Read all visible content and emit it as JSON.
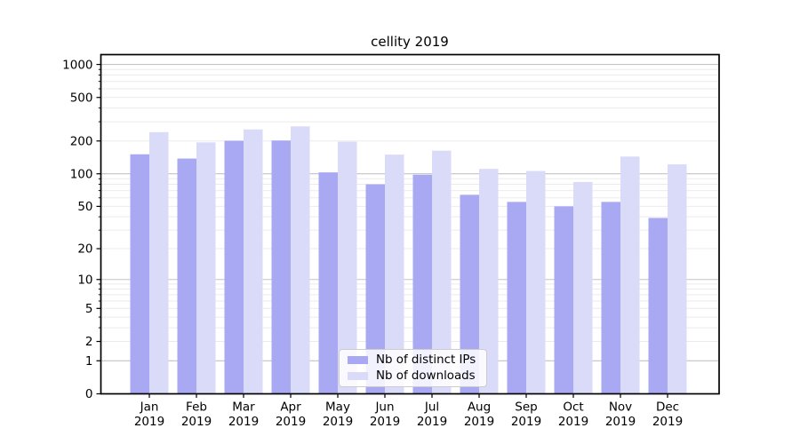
{
  "chart_data": {
    "type": "bar",
    "title": "cellity 2019",
    "categories": [
      "Jan 2019",
      "Feb 2019",
      "Mar 2019",
      "Apr 2019",
      "May 2019",
      "Jun 2019",
      "Jul 2019",
      "Aug 2019",
      "Sep 2019",
      "Oct 2019",
      "Nov 2019",
      "Dec 2019"
    ],
    "series": [
      {
        "name": "Nb of distinct IPs",
        "color": "#a8a8f3",
        "values": [
          151,
          138,
          201,
          202,
          103,
          80,
          98,
          64,
          55,
          50,
          55,
          39
        ]
      },
      {
        "name": "Nb of downloads",
        "color": "#dadaf9",
        "values": [
          241,
          194,
          255,
          272,
          197,
          150,
          163,
          111,
          106,
          84,
          144,
          122
        ]
      }
    ],
    "xlabel": "",
    "ylabel": "",
    "y_axis": {
      "scale": "log1p",
      "ticks": [
        1000,
        500,
        200,
        100,
        50,
        20,
        10,
        5,
        2,
        1,
        0
      ],
      "ylim": [
        0,
        1229
      ]
    },
    "grid": "horizontal",
    "legend_position": "lower center"
  }
}
